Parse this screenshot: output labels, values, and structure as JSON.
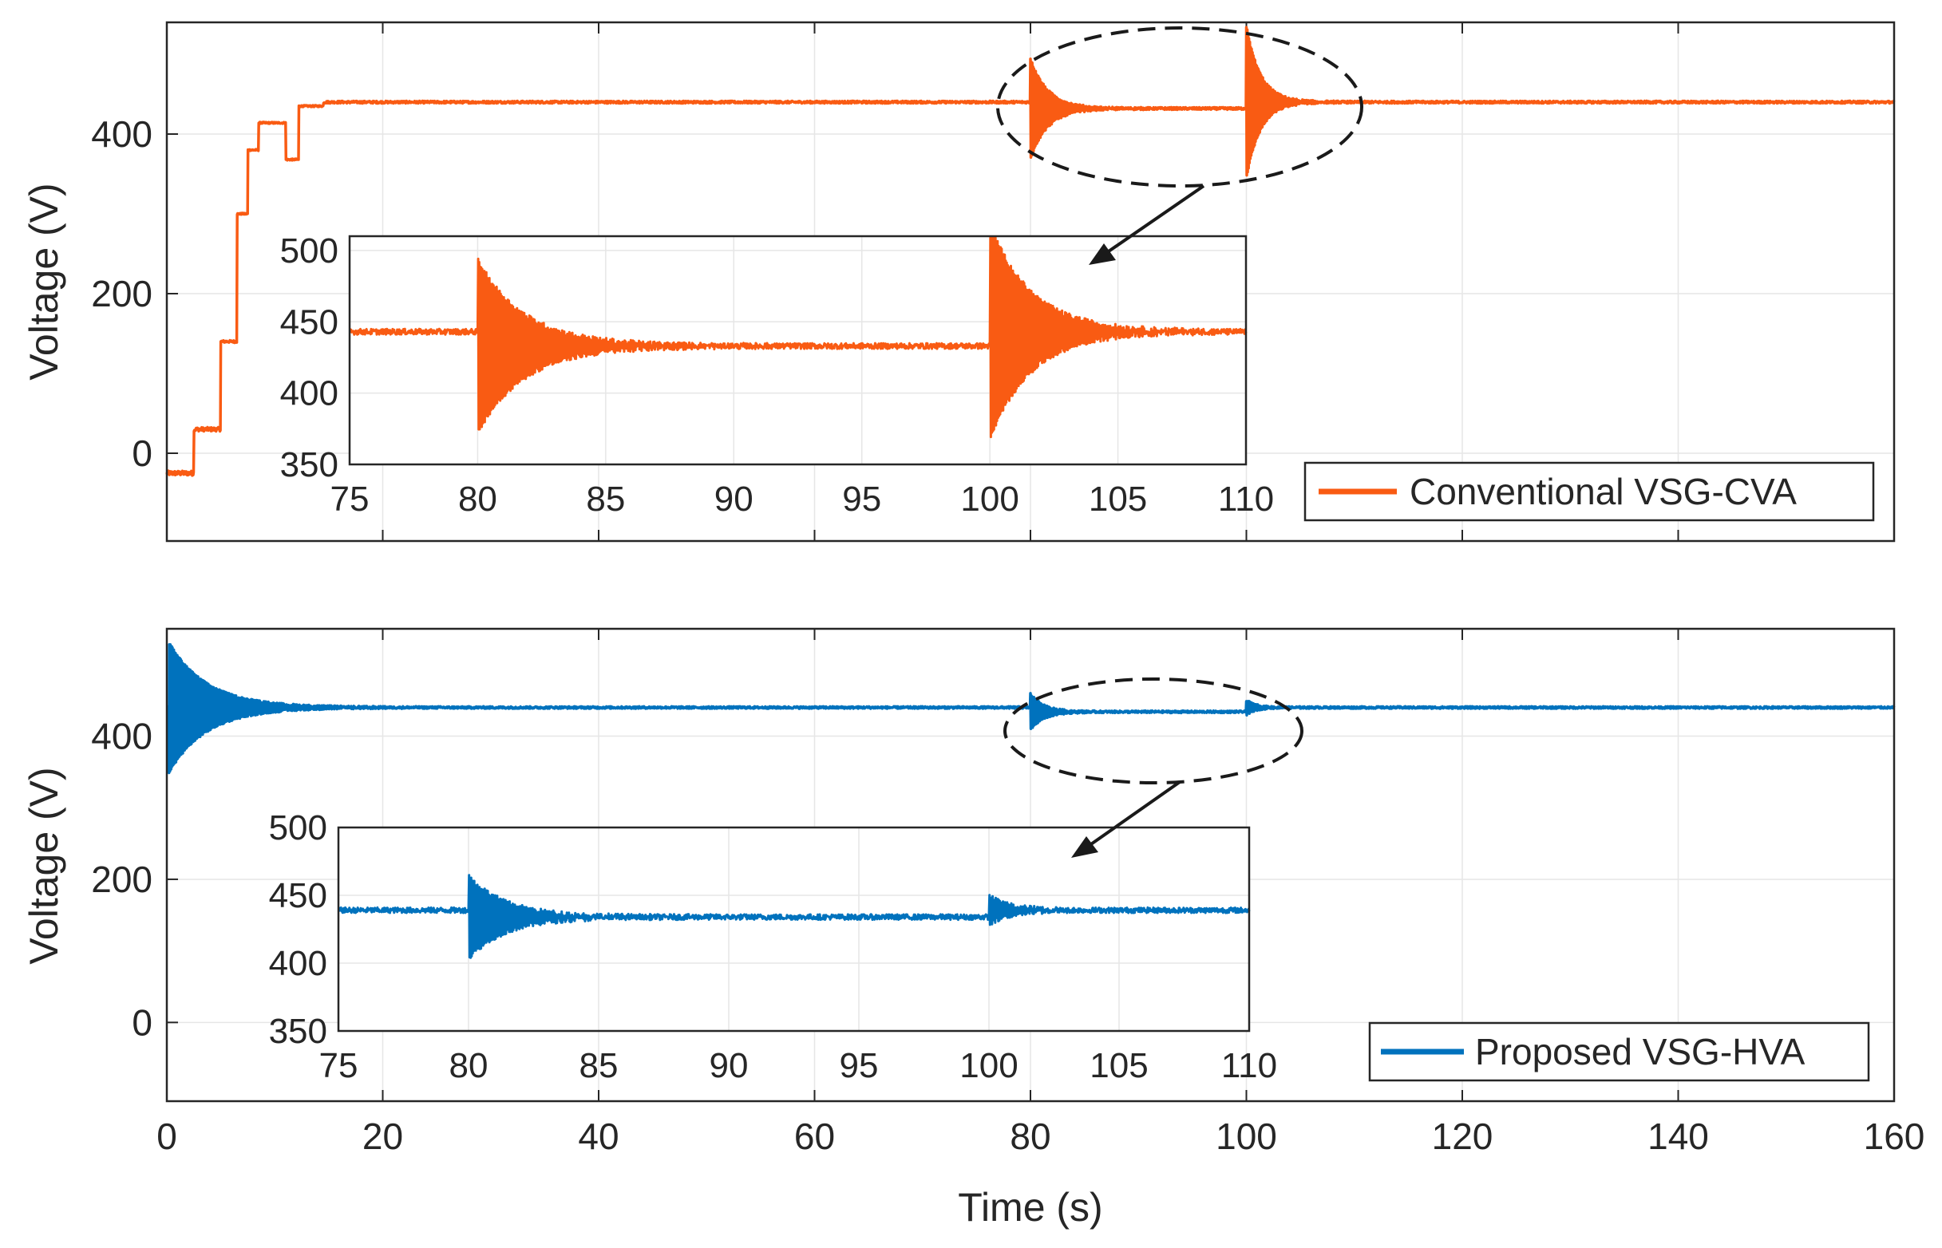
{
  "chart_data": [
    {
      "type": "line",
      "id": "top",
      "xlabel": "",
      "ylabel": "Voltage (V)",
      "xlim": [
        0,
        160
      ],
      "ylim": [
        -110,
        540
      ],
      "xticks": [
        0,
        20,
        40,
        60,
        80,
        100,
        120,
        140,
        160
      ],
      "yticks": [
        0,
        200,
        400
      ],
      "tick_labels_x": false,
      "legend": "Conventional VSG-CVA",
      "legend_position": "bottom-right",
      "color": "#F95B13",
      "grid": true,
      "series": [
        {
          "name": "Conventional VSG-CVA",
          "segments": [
            {
              "x0": 0,
              "x1": 2.5,
              "v": -25,
              "amp": 6
            },
            {
              "x0": 2.5,
              "x1": 5,
              "v": 30,
              "amp": 5
            },
            {
              "x0": 5,
              "x1": 6.5,
              "v": 140,
              "amp": 3
            },
            {
              "x0": 6.5,
              "x1": 7.5,
              "v": 300,
              "amp": 2
            },
            {
              "x0": 7.5,
              "x1": 8.5,
              "v": 380,
              "amp": 2
            },
            {
              "x0": 8.5,
              "x1": 11,
              "v": 414,
              "amp": 2
            },
            {
              "x0": 11,
              "x1": 12.2,
              "v": 368,
              "amp": 2
            },
            {
              "x0": 12.2,
              "x1": 14.5,
              "v": 435,
              "amp": 2
            },
            {
              "x0": 14.5,
              "x1": 80,
              "v": 440,
              "amp": 3
            },
            {
              "x0": 80,
              "x1": 100,
              "v": 432,
              "amp": 3
            },
            {
              "x0": 100,
              "x1": 160,
              "v": 440,
              "amp": 3
            }
          ],
          "events": [
            {
              "t": 80,
              "from": 440,
              "to": 432,
              "amp": 62,
              "decay": 1.6
            },
            {
              "t": 100,
              "from": 432,
              "to": 440,
              "amp": 95,
              "decay": 1.3
            }
          ]
        }
      ],
      "inset": {
        "xlim": [
          75,
          110
        ],
        "ylim": [
          350,
          510
        ],
        "xticks": [
          75,
          80,
          85,
          90,
          95,
          100,
          105,
          110
        ],
        "yticks": [
          350,
          400,
          450,
          500
        ],
        "segments": [
          {
            "x0": 75,
            "x1": 80,
            "v": 443,
            "amp": 4
          },
          {
            "x0": 80,
            "x1": 100,
            "v": 433,
            "amp": 4
          },
          {
            "x0": 100,
            "x1": 110,
            "v": 443,
            "amp": 4
          }
        ],
        "events": [
          {
            "t": 80,
            "from": 443,
            "to": 433,
            "amp": 60,
            "decay": 1.8
          },
          {
            "t": 100,
            "from": 433,
            "to": 443,
            "amp": 75,
            "decay": 1.6
          }
        ]
      }
    },
    {
      "type": "line",
      "id": "bottom",
      "xlabel": "Time (s)",
      "ylabel": "Voltage (V)",
      "xlim": [
        0,
        160
      ],
      "ylim": [
        -110,
        550
      ],
      "xticks": [
        0,
        20,
        40,
        60,
        80,
        100,
        120,
        140,
        160
      ],
      "yticks": [
        0,
        200,
        400
      ],
      "tick_labels_x": true,
      "legend": "Proposed VSG-HVA",
      "legend_position": "bottom-right",
      "color": "#0072BD",
      "grid": true,
      "series": [
        {
          "name": "Proposed VSG-HVA",
          "segments": [
            {
              "x0": 0,
              "x1": 80,
              "v": 440,
              "amp": 3
            },
            {
              "x0": 80,
              "x1": 100,
              "v": 434,
              "amp": 3
            },
            {
              "x0": 100,
              "x1": 160,
              "v": 440,
              "amp": 3
            }
          ],
          "events": [
            {
              "t": 0.2,
              "from": 440,
              "to": 440,
              "amp": 90,
              "decay": 3.5
            },
            {
              "t": 80,
              "from": 440,
              "to": 434,
              "amp": 25,
              "decay": 1.2
            },
            {
              "t": 100,
              "from": 434,
              "to": 440,
              "amp": 10,
              "decay": 0.8
            }
          ]
        }
      ],
      "inset": {
        "xlim": [
          75,
          110
        ],
        "ylim": [
          350,
          500
        ],
        "xticks": [
          75,
          80,
          85,
          90,
          95,
          100,
          105,
          110
        ],
        "yticks": [
          350,
          400,
          450,
          500
        ],
        "segments": [
          {
            "x0": 75,
            "x1": 80,
            "v": 439,
            "amp": 4
          },
          {
            "x0": 80,
            "x1": 100,
            "v": 434,
            "amp": 4
          },
          {
            "x0": 100,
            "x1": 110,
            "v": 439,
            "amp": 4
          }
        ],
        "events": [
          {
            "t": 80,
            "from": 439,
            "to": 434,
            "amp": 30,
            "decay": 1.4
          },
          {
            "t": 100,
            "from": 434,
            "to": 439,
            "amp": 10,
            "decay": 0.8
          }
        ]
      }
    }
  ]
}
